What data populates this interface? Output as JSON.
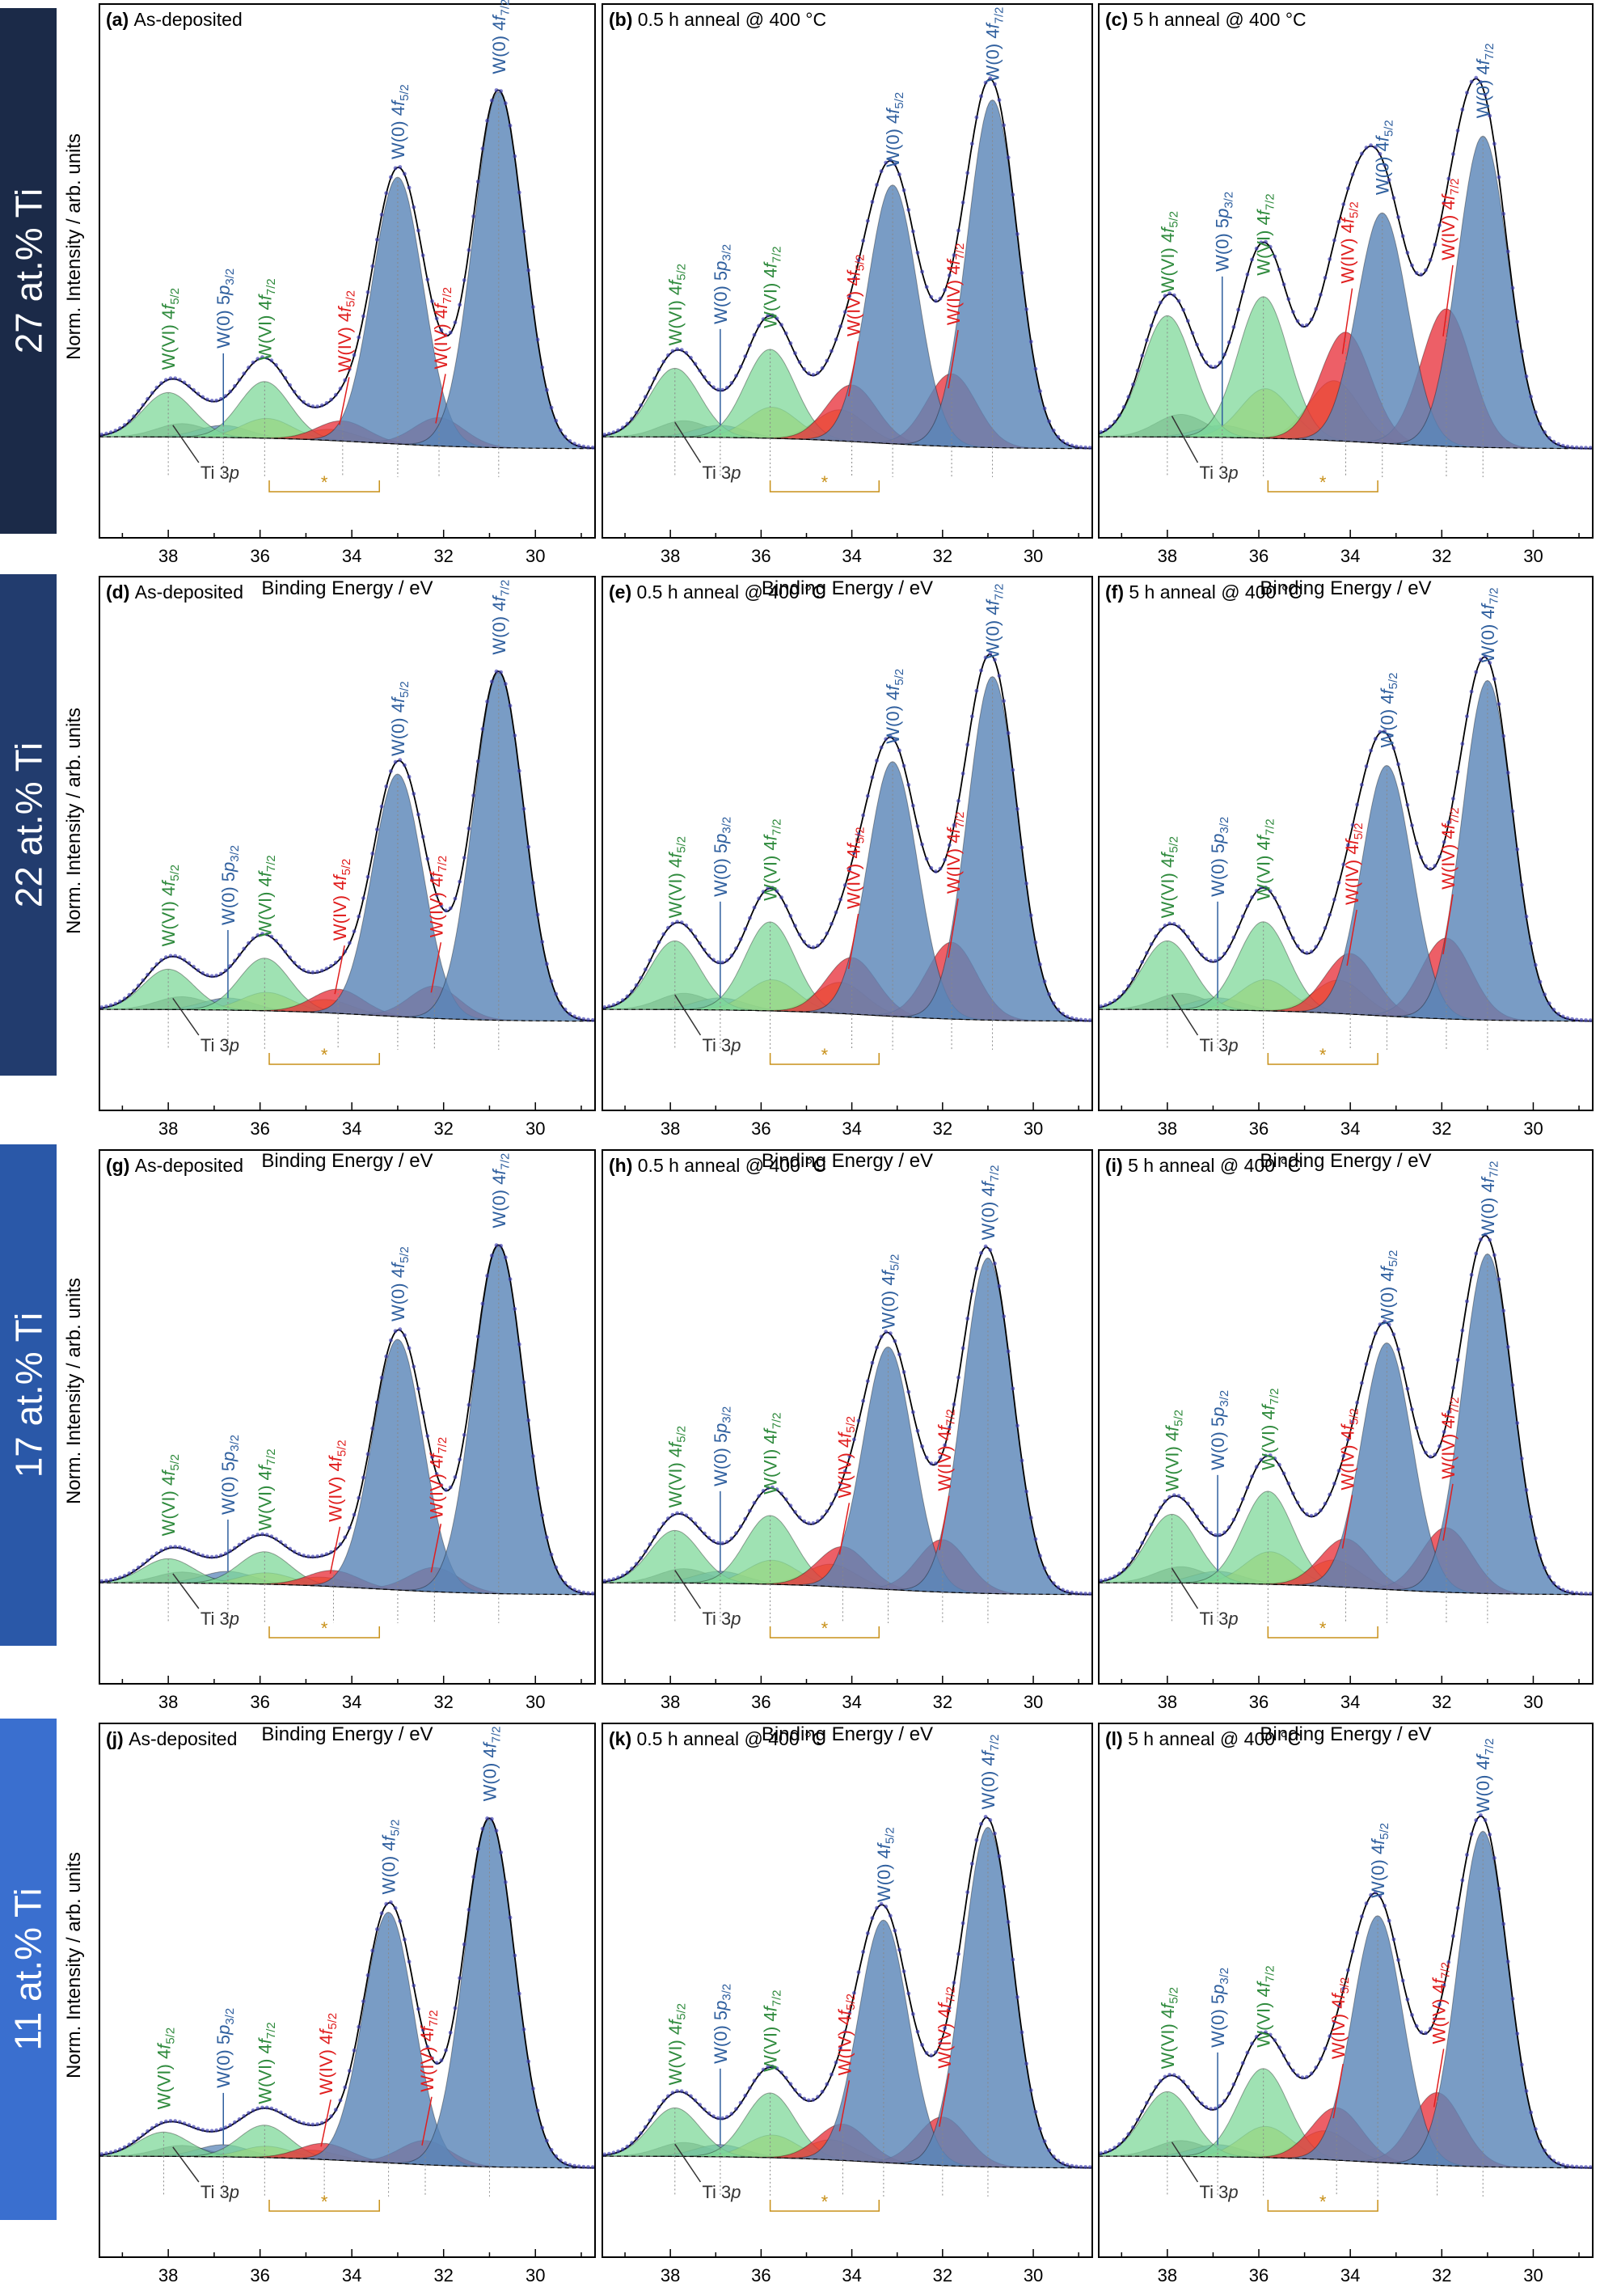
{
  "figure": {
    "row_labels": [
      "27 at.% Ti",
      "22 at.% Ti",
      "17 at.% Ti",
      "11 at.% Ti"
    ],
    "row_colors": [
      "#1b2a48",
      "#223c6e",
      "#2a58a8",
      "#3a6fcf"
    ],
    "ylabel": "Norm. Intensity / arb. units",
    "xlabel": "Binding Energy / eV",
    "colors": {
      "w0": "#5b86b8",
      "wvi": "#7fd89a",
      "wiv": "#e8323c",
      "yellow": "#ddd040",
      "orange": "#f0a020",
      "gray": "#777777",
      "fit": "#000000",
      "data_points": "#3a3ab0",
      "label_w0": "#2f5f9e",
      "label_wvi": "#2e8a3c",
      "label_wiv": "#e01e1e",
      "bracket": "#c89018"
    }
  },
  "labels": {
    "wvi_52": "W(VI) 4f5/2",
    "w0_5p": "W(0) 5p3/2",
    "wvi_72": "W(VI) 4f7/2",
    "wiv_52": "W(IV) 4f5/2",
    "wiv_72": "W(IV) 4f7/2",
    "w0_52": "W(0) 4f5/2",
    "w0_72": "W(0) 4f7/2",
    "ti3p": "Ti 3p",
    "star": "*"
  },
  "chart_data": [
    {
      "type": "line",
      "id": "a",
      "panel_label": "(a)",
      "title": "As-deposited",
      "xlim": [
        39.5,
        28.7
      ],
      "xreversed": true,
      "ticks": [
        38,
        36,
        34,
        32,
        30
      ],
      "xlabel": "Binding Energy / eV",
      "ylabel": "Norm. Intensity / arb. units",
      "peaks": [
        {
          "component": "W(0) 4f7/2",
          "center": 30.8,
          "height": 0.88
        },
        {
          "component": "W(0) 4f5/2",
          "center": 33.0,
          "height": 0.66
        },
        {
          "component": "W(VI) 4f7/2",
          "center": 35.9,
          "height": 0.14
        },
        {
          "component": "W(VI) 4f5/2",
          "center": 38.0,
          "height": 0.11
        },
        {
          "component": "W(IV) 4f7/2",
          "center": 32.1,
          "height": 0.07
        },
        {
          "component": "W(IV) 4f5/2",
          "center": 34.2,
          "height": 0.05
        },
        {
          "component": "W(0) 5p3/2",
          "center": 36.8,
          "height": 0.03
        }
      ]
    },
    {
      "type": "line",
      "id": "b",
      "panel_label": "(b)",
      "title": "0.5 h anneal @ 400 °C",
      "xlim": [
        39.5,
        28.7
      ],
      "xreversed": true,
      "ticks": [
        38,
        36,
        34,
        32,
        30
      ],
      "xlabel": "Binding Energy / eV",
      "ylabel": "Norm. Intensity / arb. units",
      "peaks": [
        {
          "component": "W(0) 4f7/2",
          "center": 30.9,
          "height": 0.86
        },
        {
          "component": "W(0) 4f5/2",
          "center": 33.1,
          "height": 0.64
        },
        {
          "component": "W(VI) 4f7/2",
          "center": 35.8,
          "height": 0.22
        },
        {
          "component": "W(VI) 4f5/2",
          "center": 37.9,
          "height": 0.17
        },
        {
          "component": "W(IV) 4f7/2",
          "center": 31.8,
          "height": 0.18
        },
        {
          "component": "W(IV) 4f5/2",
          "center": 34.0,
          "height": 0.14
        },
        {
          "component": "W(0) 5p3/2",
          "center": 36.9,
          "height": 0.03
        }
      ]
    },
    {
      "type": "line",
      "id": "c",
      "panel_label": "(c)",
      "title": "5 h anneal @ 400 °C",
      "xlim": [
        39.5,
        28.7
      ],
      "xreversed": true,
      "ticks": [
        38,
        36,
        34,
        32,
        30
      ],
      "xlabel": "Binding Energy / eV",
      "ylabel": "Norm. Intensity / arb. units",
      "peaks": [
        {
          "component": "W(0) 4f7/2",
          "center": 31.1,
          "height": 0.77
        },
        {
          "component": "W(0) 4f5/2",
          "center": 33.3,
          "height": 0.57
        },
        {
          "component": "W(VI) 4f7/2",
          "center": 35.9,
          "height": 0.35
        },
        {
          "component": "W(VI) 4f5/2",
          "center": 38.0,
          "height": 0.3
        },
        {
          "component": "W(IV) 4f7/2",
          "center": 31.9,
          "height": 0.34
        },
        {
          "component": "W(IV) 4f5/2",
          "center": 34.1,
          "height": 0.27
        },
        {
          "component": "W(0) 5p3/2",
          "center": 36.8,
          "height": 0.03
        }
      ]
    },
    {
      "type": "line",
      "id": "d",
      "panel_label": "(d)",
      "title": "As-deposited",
      "xlim": [
        39.5,
        28.7
      ],
      "xreversed": true,
      "ticks": [
        38,
        36,
        34,
        32,
        30
      ],
      "xlabel": "Binding Energy / eV",
      "ylabel": "Norm. Intensity / arb. units",
      "peaks": [
        {
          "component": "W(0) 4f7/2",
          "center": 30.8,
          "height": 0.86
        },
        {
          "component": "W(0) 4f5/2",
          "center": 33.0,
          "height": 0.6
        },
        {
          "component": "W(VI) 4f7/2",
          "center": 35.9,
          "height": 0.13
        },
        {
          "component": "W(VI) 4f5/2",
          "center": 38.0,
          "height": 0.1
        },
        {
          "component": "W(IV) 4f7/2",
          "center": 32.2,
          "height": 0.08
        },
        {
          "component": "W(IV) 4f5/2",
          "center": 34.3,
          "height": 0.06
        },
        {
          "component": "W(0) 5p3/2",
          "center": 36.7,
          "height": 0.03
        }
      ]
    },
    {
      "type": "line",
      "id": "e",
      "panel_label": "(e)",
      "title": "0.5 h anneal @ 400 °C",
      "xlim": [
        39.5,
        28.7
      ],
      "xreversed": true,
      "ticks": [
        38,
        36,
        34,
        32,
        30
      ],
      "xlabel": "Binding Energy / eV",
      "ylabel": "Norm. Intensity / arb. units",
      "peaks": [
        {
          "component": "W(0) 4f7/2",
          "center": 30.9,
          "height": 0.85
        },
        {
          "component": "W(0) 4f5/2",
          "center": 33.1,
          "height": 0.63
        },
        {
          "component": "W(VI) 4f7/2",
          "center": 35.8,
          "height": 0.22
        },
        {
          "component": "W(VI) 4f5/2",
          "center": 37.9,
          "height": 0.17
        },
        {
          "component": "W(IV) 4f7/2",
          "center": 31.8,
          "height": 0.19
        },
        {
          "component": "W(IV) 4f5/2",
          "center": 34.0,
          "height": 0.14
        },
        {
          "component": "W(0) 5p3/2",
          "center": 36.9,
          "height": 0.03
        }
      ]
    },
    {
      "type": "line",
      "id": "f",
      "panel_label": "(f)",
      "title": "5 h anneal @ 400 °C",
      "xlim": [
        39.5,
        28.7
      ],
      "xreversed": true,
      "ticks": [
        38,
        36,
        34,
        32,
        30
      ],
      "xlabel": "Binding Energy / eV",
      "ylabel": "Norm. Intensity / arb. units",
      "peaks": [
        {
          "component": "W(0) 4f7/2",
          "center": 31.0,
          "height": 0.84
        },
        {
          "component": "W(0) 4f5/2",
          "center": 33.2,
          "height": 0.62
        },
        {
          "component": "W(VI) 4f7/2",
          "center": 35.9,
          "height": 0.22
        },
        {
          "component": "W(VI) 4f5/2",
          "center": 38.0,
          "height": 0.17
        },
        {
          "component": "W(IV) 4f7/2",
          "center": 31.9,
          "height": 0.2
        },
        {
          "component": "W(IV) 4f5/2",
          "center": 34.0,
          "height": 0.15
        },
        {
          "component": "W(0) 5p3/2",
          "center": 36.9,
          "height": 0.03
        }
      ]
    },
    {
      "type": "line",
      "id": "g",
      "panel_label": "(g)",
      "title": "As-deposited",
      "xlim": [
        39.5,
        28.7
      ],
      "xreversed": true,
      "ticks": [
        38,
        36,
        34,
        32,
        30
      ],
      "xlabel": "Binding Energy / eV",
      "ylabel": "Norm. Intensity / arb. units",
      "peaks": [
        {
          "component": "W(0) 4f7/2",
          "center": 30.8,
          "height": 0.86
        },
        {
          "component": "W(0) 4f5/2",
          "center": 33.0,
          "height": 0.62
        },
        {
          "component": "W(VI) 4f7/2",
          "center": 35.9,
          "height": 0.08
        },
        {
          "component": "W(VI) 4f5/2",
          "center": 38.0,
          "height": 0.06
        },
        {
          "component": "W(IV) 4f7/2",
          "center": 32.2,
          "height": 0.06
        },
        {
          "component": "W(IV) 4f5/2",
          "center": 34.4,
          "height": 0.04
        },
        {
          "component": "W(0) 5p3/2",
          "center": 36.7,
          "height": 0.03
        }
      ]
    },
    {
      "type": "line",
      "id": "h",
      "panel_label": "(h)",
      "title": "0.5 h anneal @ 400 °C",
      "xlim": [
        39.5,
        28.7
      ],
      "xreversed": true,
      "ticks": [
        38,
        36,
        34,
        32,
        30
      ],
      "xlabel": "Binding Energy / eV",
      "ylabel": "Norm. Intensity / arb. units",
      "peaks": [
        {
          "component": "W(0) 4f7/2",
          "center": 31.0,
          "height": 0.83
        },
        {
          "component": "W(0) 4f5/2",
          "center": 33.2,
          "height": 0.6
        },
        {
          "component": "W(VI) 4f7/2",
          "center": 35.8,
          "height": 0.17
        },
        {
          "component": "W(VI) 4f5/2",
          "center": 37.9,
          "height": 0.13
        },
        {
          "component": "W(IV) 4f7/2",
          "center": 32.0,
          "height": 0.13
        },
        {
          "component": "W(IV) 4f5/2",
          "center": 34.2,
          "height": 0.1
        },
        {
          "component": "W(0) 5p3/2",
          "center": 36.9,
          "height": 0.03
        }
      ]
    },
    {
      "type": "line",
      "id": "i",
      "panel_label": "(i)",
      "title": "5 h anneal @ 400 °C",
      "xlim": [
        39.5,
        28.7
      ],
      "xreversed": true,
      "ticks": [
        38,
        36,
        34,
        32,
        30
      ],
      "xlabel": "Binding Energy / eV",
      "ylabel": "Norm. Intensity / arb. units",
      "peaks": [
        {
          "component": "W(0) 4f7/2",
          "center": 31.0,
          "height": 0.84
        },
        {
          "component": "W(0) 4f5/2",
          "center": 33.2,
          "height": 0.61
        },
        {
          "component": "W(VI) 4f7/2",
          "center": 35.8,
          "height": 0.23
        },
        {
          "component": "W(VI) 4f5/2",
          "center": 37.9,
          "height": 0.17
        },
        {
          "component": "W(IV) 4f7/2",
          "center": 31.9,
          "height": 0.16
        },
        {
          "component": "W(IV) 4f5/2",
          "center": 34.1,
          "height": 0.12
        },
        {
          "component": "W(0) 5p3/2",
          "center": 36.9,
          "height": 0.03
        }
      ]
    },
    {
      "type": "line",
      "id": "j",
      "panel_label": "(j)",
      "title": "As-deposited",
      "xlim": [
        39.5,
        28.7
      ],
      "xreversed": true,
      "ticks": [
        38,
        36,
        34,
        32,
        30
      ],
      "xlabel": "Binding Energy / eV",
      "ylabel": "Norm. Intensity / arb. units",
      "peaks": [
        {
          "component": "W(0) 4f7/2",
          "center": 31.0,
          "height": 0.86
        },
        {
          "component": "W(0) 4f5/2",
          "center": 33.2,
          "height": 0.62
        },
        {
          "component": "W(VI) 4f7/2",
          "center": 35.9,
          "height": 0.08
        },
        {
          "component": "W(VI) 4f5/2",
          "center": 38.1,
          "height": 0.06
        },
        {
          "component": "W(IV) 4f7/2",
          "center": 32.4,
          "height": 0.06
        },
        {
          "component": "W(IV) 4f5/2",
          "center": 34.6,
          "height": 0.04
        },
        {
          "component": "W(0) 5p3/2",
          "center": 36.8,
          "height": 0.03
        }
      ]
    },
    {
      "type": "line",
      "id": "k",
      "panel_label": "(k)",
      "title": "0.5 h anneal @ 400 °C",
      "xlim": [
        39.5,
        28.7
      ],
      "xreversed": true,
      "ticks": [
        38,
        36,
        34,
        32,
        30
      ],
      "xlabel": "Binding Energy / eV",
      "ylabel": "Norm. Intensity / arb. units",
      "peaks": [
        {
          "component": "W(0) 4f7/2",
          "center": 31.0,
          "height": 0.84
        },
        {
          "component": "W(0) 4f5/2",
          "center": 33.3,
          "height": 0.6
        },
        {
          "component": "W(VI) 4f7/2",
          "center": 35.8,
          "height": 0.16
        },
        {
          "component": "W(VI) 4f5/2",
          "center": 37.9,
          "height": 0.12
        },
        {
          "component": "W(IV) 4f7/2",
          "center": 32.0,
          "height": 0.12
        },
        {
          "component": "W(IV) 4f5/2",
          "center": 34.2,
          "height": 0.09
        },
        {
          "component": "W(0) 5p3/2",
          "center": 36.9,
          "height": 0.03
        }
      ]
    },
    {
      "type": "line",
      "id": "l",
      "panel_label": "(l)",
      "title": "5 h anneal @ 400 °C",
      "xlim": [
        39.5,
        28.7
      ],
      "xreversed": true,
      "ticks": [
        38,
        36,
        34,
        32,
        30
      ],
      "xlabel": "Binding Energy / eV",
      "ylabel": "Norm. Intensity / arb. units",
      "peaks": [
        {
          "component": "W(0) 4f7/2",
          "center": 31.1,
          "height": 0.83
        },
        {
          "component": "W(0) 4f5/2",
          "center": 33.4,
          "height": 0.61
        },
        {
          "component": "W(VI) 4f7/2",
          "center": 35.9,
          "height": 0.22
        },
        {
          "component": "W(VI) 4f5/2",
          "center": 38.0,
          "height": 0.16
        },
        {
          "component": "W(IV) 4f7/2",
          "center": 32.1,
          "height": 0.18
        },
        {
          "component": "W(IV) 4f5/2",
          "center": 34.3,
          "height": 0.13
        },
        {
          "component": "W(0) 5p3/2",
          "center": 36.9,
          "height": 0.03
        }
      ]
    }
  ]
}
